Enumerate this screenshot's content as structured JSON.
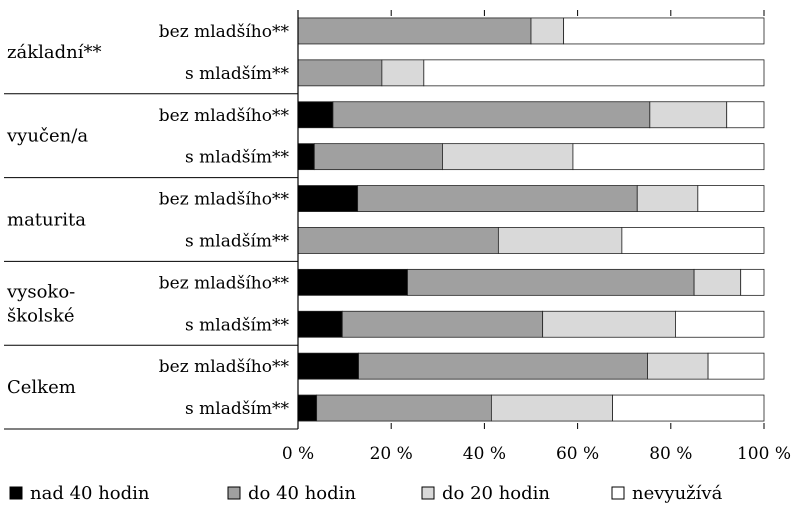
{
  "chart_data": {
    "type": "bar",
    "orientation": "horizontal",
    "stacked": true,
    "percent": true,
    "xlim": [
      0,
      100
    ],
    "x_ticks": [
      "0 %",
      "20 %",
      "40 %",
      "60 %",
      "80 %",
      "100 %"
    ],
    "grid": false,
    "legend_position": "bottom",
    "groups": [
      {
        "label_lines": [
          "základní**"
        ],
        "rows": [
          {
            "label": "bez mladšího**",
            "values": [
              0,
              50,
              7,
              43
            ]
          },
          {
            "label": "s mladším**",
            "values": [
              0,
              18,
              9,
              73
            ]
          }
        ]
      },
      {
        "label_lines": [
          "vyučen/a"
        ],
        "rows": [
          {
            "label": "bez mladšího**",
            "values": [
              7.5,
              68,
              16.5,
              8
            ]
          },
          {
            "label": "s mladším**",
            "values": [
              3.5,
              27.5,
              28,
              41
            ]
          }
        ]
      },
      {
        "label_lines": [
          "maturita"
        ],
        "rows": [
          {
            "label": "bez mladšího**",
            "values": [
              12.8,
              60,
              13,
              14.2
            ]
          },
          {
            "label": "s mladším**",
            "values": [
              0,
              43,
              26.5,
              30.5
            ]
          }
        ]
      },
      {
        "label_lines": [
          "vysoko-",
          "školské"
        ],
        "rows": [
          {
            "label": "bez mladšího**",
            "values": [
              23.5,
              61.5,
              10,
              5
            ]
          },
          {
            "label": "s mladším**",
            "values": [
              9.5,
              43,
              28.5,
              19
            ]
          }
        ]
      },
      {
        "label_lines": [
          "Celkem"
        ],
        "rows": [
          {
            "label": "bez mladšího**",
            "values": [
              13,
              62,
              13,
              12
            ]
          },
          {
            "label": "s mladším**",
            "values": [
              4,
              37.5,
              26,
              32.5
            ]
          }
        ]
      }
    ],
    "series": [
      {
        "name": "nad 40 hodin",
        "color": "#000000"
      },
      {
        "name": "do 40 hodin",
        "color": "#a0a0a0"
      },
      {
        "name": "do 20 hodin",
        "color": "#d9d9d9"
      },
      {
        "name": "nevyužívá",
        "color": "#ffffff"
      }
    ]
  }
}
